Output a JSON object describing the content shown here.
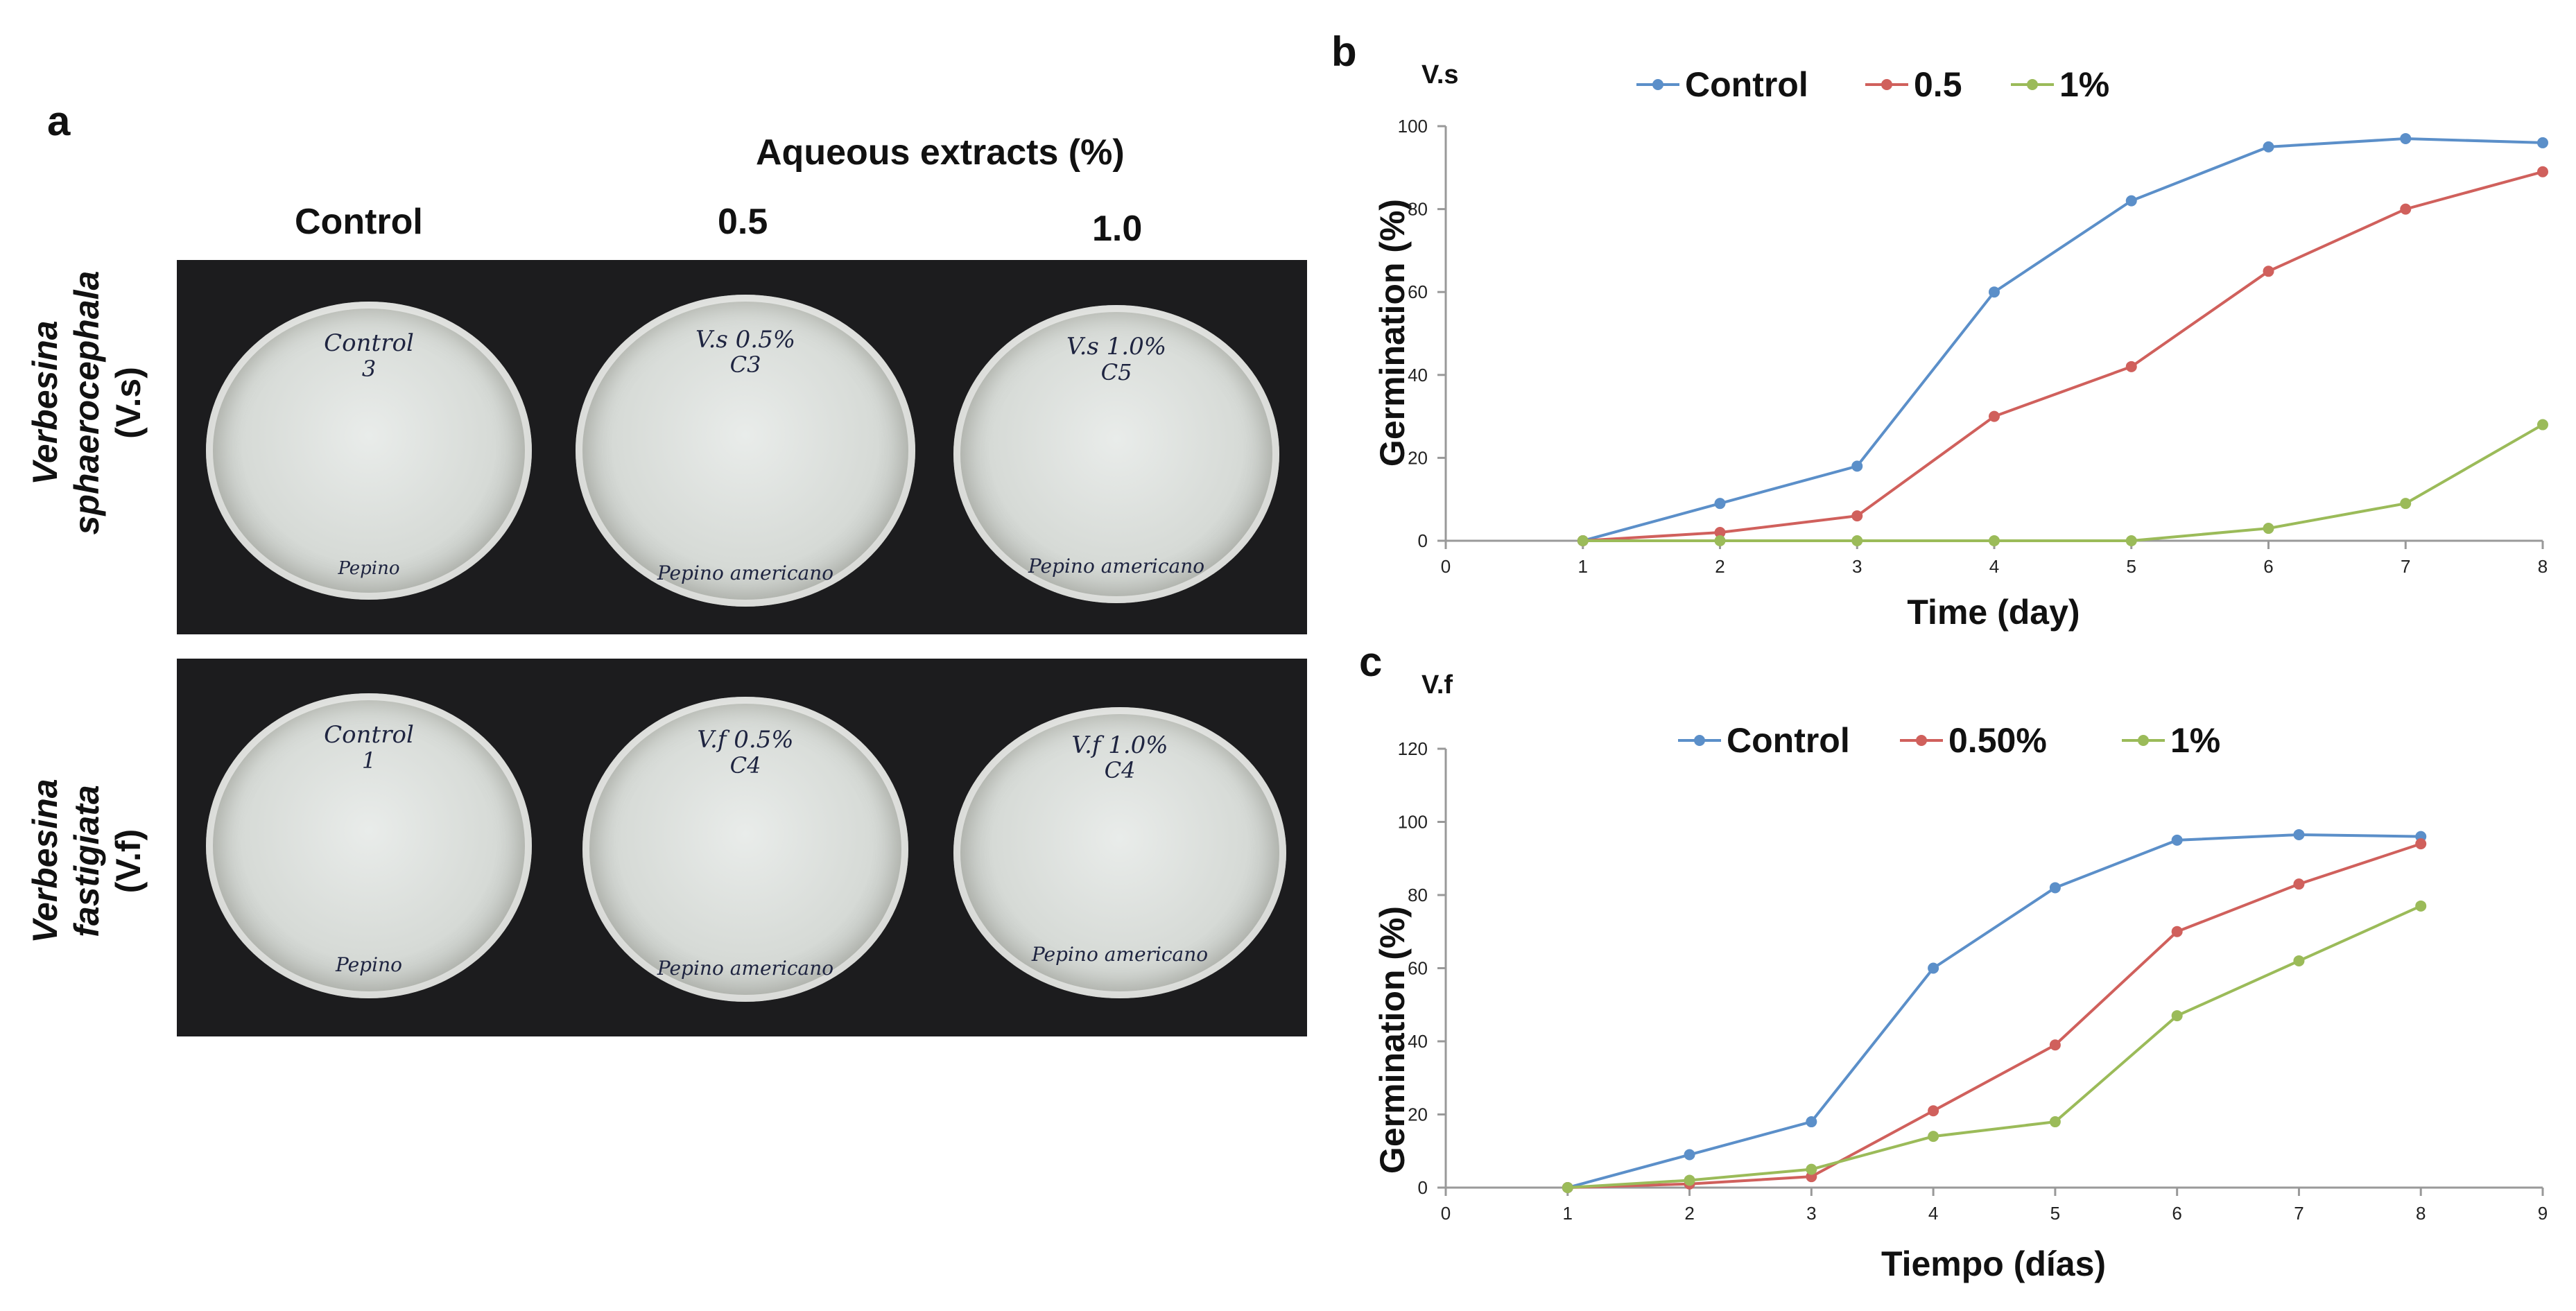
{
  "figure": {
    "panel_a": {
      "letter": "a",
      "main_header": "Aqueous extracts (%)",
      "col_headers": [
        "Control",
        "0.5",
        "1.0"
      ],
      "row1_label_italic_1": "Verbesina",
      "row1_label_italic_2": "sphaerocephala",
      "row1_label_plain": "(V.s)",
      "row2_label_italic_1": "Verbesina",
      "row2_label_italic_2": "fastigiata",
      "row2_label_plain": "(V.f)",
      "dishes": [
        {
          "top": "Control",
          "mid": "3",
          "bottom": "Pepino"
        },
        {
          "top": "V.s 0.5%",
          "mid": "C3",
          "bottom": "Pepino americano"
        },
        {
          "top": "V.s 1.0%",
          "mid": "C5",
          "bottom": "Pepino americano"
        },
        {
          "top": "Control",
          "mid": "1",
          "bottom": "Pepino"
        },
        {
          "top": "V.f 0.5%",
          "mid": "C4",
          "bottom": "Pepino americano"
        },
        {
          "top": "V.f 1.0%",
          "mid": "C4",
          "bottom": "Pepino americano"
        }
      ]
    },
    "panel_b_letter": "b",
    "panel_c_letter": "c"
  },
  "colors": {
    "control": "#5b8fc9",
    "mid": "#d0605c",
    "high": "#9bbb59",
    "axis": "#999999"
  },
  "chart_data": [
    {
      "type": "line",
      "corner_label": "V.s",
      "title": "",
      "xlabel": "Time (day)",
      "ylabel": "Germination (%)",
      "xlim": [
        0,
        8
      ],
      "ylim": [
        0,
        100
      ],
      "xticks": [
        0,
        1,
        2,
        3,
        4,
        5,
        6,
        7,
        8
      ],
      "yticks": [
        0,
        20,
        40,
        60,
        80,
        100
      ],
      "legend_position": "top",
      "x": [
        1,
        2,
        3,
        4,
        5,
        6,
        7,
        8
      ],
      "series": [
        {
          "name": "Control",
          "color_key": "control",
          "values": [
            0,
            9,
            18,
            60,
            82,
            95,
            97,
            96
          ]
        },
        {
          "name": "0.5",
          "color_key": "mid",
          "values": [
            0,
            2,
            6,
            30,
            42,
            65,
            80,
            89
          ]
        },
        {
          "name": "1%",
          "color_key": "high",
          "values": [
            0,
            0,
            0,
            0,
            0,
            3,
            9,
            28
          ]
        }
      ]
    },
    {
      "type": "line",
      "corner_label": "V.f",
      "title": "",
      "xlabel": "Tiempo (días)",
      "ylabel": "Germination (%)",
      "xlim": [
        0,
        9
      ],
      "ylim": [
        0,
        120
      ],
      "xticks": [
        0,
        1,
        2,
        3,
        4,
        5,
        6,
        7,
        8,
        9
      ],
      "yticks": [
        0,
        20,
        40,
        60,
        80,
        100,
        120
      ],
      "legend_position": "top",
      "x": [
        1,
        2,
        3,
        4,
        5,
        6,
        7,
        8
      ],
      "series": [
        {
          "name": "Control",
          "color_key": "control",
          "values": [
            0,
            9,
            18,
            60,
            82,
            95,
            96.5,
            96
          ]
        },
        {
          "name": "0.50%",
          "color_key": "mid",
          "values": [
            0,
            1,
            3,
            21,
            39,
            70,
            83,
            94
          ]
        },
        {
          "name": "1%",
          "color_key": "high",
          "values": [
            0,
            2,
            5,
            14,
            18,
            47,
            62,
            77
          ]
        }
      ]
    }
  ]
}
